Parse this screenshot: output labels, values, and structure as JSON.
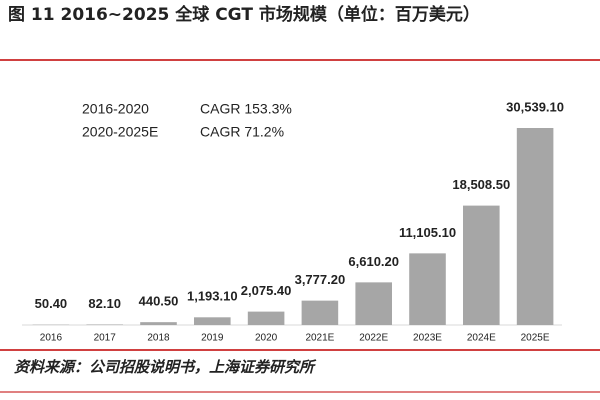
{
  "chart_data": {
    "type": "bar",
    "title": "图 11 2016~2025 全球 CGT 市场规模（单位：百万美元）",
    "annotations": [
      {
        "period": "2016-2020",
        "text": "CAGR 153.3%"
      },
      {
        "period": "2020-2025E",
        "text": "CAGR 71.2%"
      }
    ],
    "categories": [
      "2016",
      "2017",
      "2018",
      "2019",
      "2020",
      "2021E",
      "2022E",
      "2023E",
      "2024E",
      "2025E"
    ],
    "values": [
      50.4,
      82.1,
      440.5,
      1193.1,
      2075.4,
      3777.2,
      6610.2,
      11105.1,
      18508.5,
      30539.1
    ],
    "value_labels": [
      "50.40",
      "82.10",
      "440.50",
      "1,193.10",
      "2,075.40",
      "3,777.20",
      "6,610.20",
      "11,105.10",
      "18,508.50",
      "30,539.10"
    ],
    "color": "#a6a6a6",
    "source": "资料来源：公司招股说明书，上海证券研究所"
  }
}
